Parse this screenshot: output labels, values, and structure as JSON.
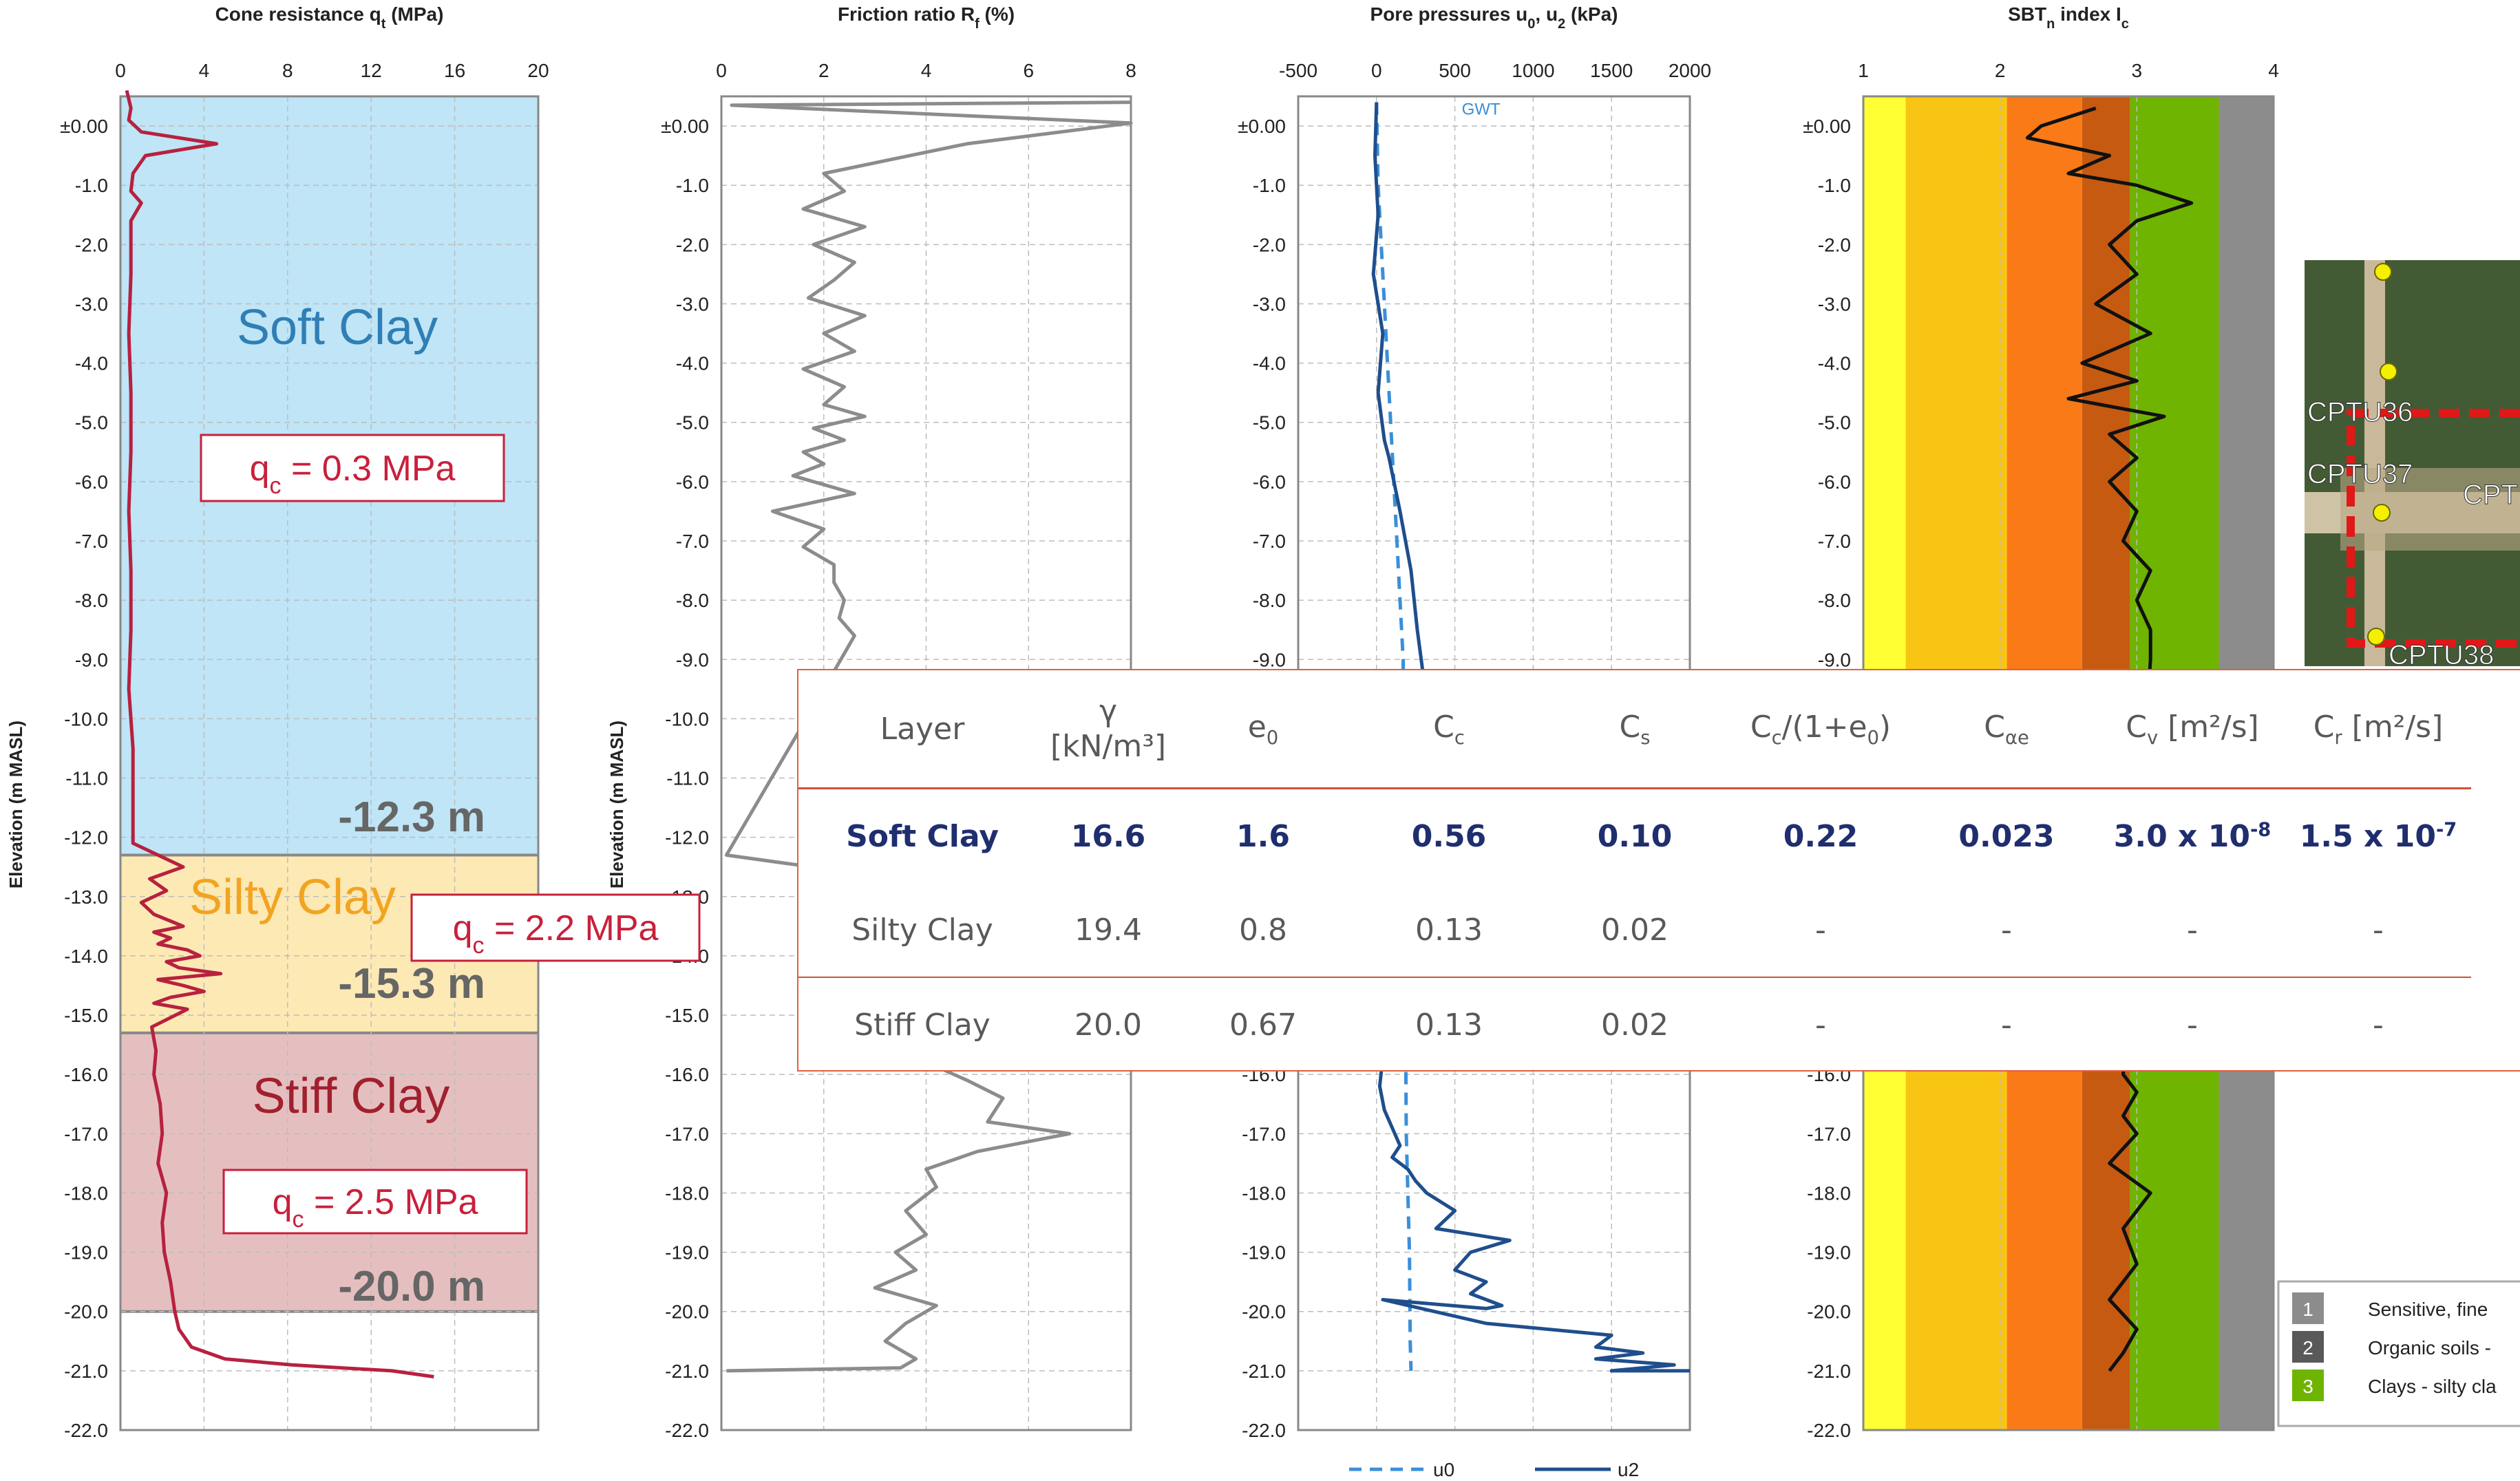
{
  "chart_data": [
    {
      "type": "line",
      "title": "Cone resistance q_t (MPa)",
      "xlim": [
        0,
        20
      ],
      "xticks": [
        0,
        4,
        8,
        12,
        16,
        20
      ],
      "ylabel": "Elevation (m MASL)",
      "ylim": [
        -22,
        0.5
      ],
      "series": [
        {
          "name": "qt",
          "x": [
            0.3,
            0.5,
            0.4,
            1.0,
            4.6,
            1.2,
            0.6,
            0.5,
            1.0,
            0.5,
            0.5,
            0.4,
            0.5,
            0.5,
            0.4,
            0.5,
            0.5,
            0.4,
            0.6,
            0.6,
            1.8,
            3.0,
            1.4,
            2.2,
            1.0,
            1.6,
            3.0,
            1.6,
            2.4,
            1.8,
            3.2,
            3.8,
            2.2,
            2.8,
            4.8,
            1.8,
            3.0,
            4.0,
            2.4,
            1.6,
            3.2,
            1.5,
            1.7,
            1.6,
            1.9,
            2.0,
            1.8,
            2.2,
            2.0,
            2.1,
            2.4,
            2.6,
            2.8,
            3.4,
            5.0,
            8.2,
            13.0,
            15.0
          ],
          "y": [
            0.6,
            0.3,
            0.1,
            -0.1,
            -0.3,
            -0.5,
            -0.8,
            -1.1,
            -1.3,
            -1.6,
            -2.5,
            -3.5,
            -4.5,
            -5.5,
            -6.5,
            -7.5,
            -8.5,
            -9.5,
            -10.5,
            -12.1,
            -12.3,
            -12.5,
            -12.7,
            -12.9,
            -13.1,
            -13.3,
            -13.5,
            -13.6,
            -13.7,
            -13.8,
            -13.9,
            -14.0,
            -14.1,
            -14.2,
            -14.3,
            -14.4,
            -14.5,
            -14.6,
            -14.7,
            -14.8,
            -14.9,
            -15.2,
            -15.6,
            -16.0,
            -16.5,
            -17.0,
            -17.5,
            -18.0,
            -18.5,
            -19.0,
            -19.5,
            -20.0,
            -20.3,
            -20.6,
            -20.8,
            -20.9,
            -21.0,
            -21.1
          ]
        }
      ]
    },
    {
      "type": "line",
      "title": "Friction ratio R_f (%)",
      "xlim": [
        0,
        8
      ],
      "xticks": [
        0,
        2,
        4,
        6,
        8
      ],
      "ylabel": "Elevation (m MASL)",
      "ylim": [
        -22,
        0.5
      ],
      "series": [
        {
          "name": "Rf",
          "x": [
            8,
            0.2,
            8,
            4.8,
            2.0,
            2.4,
            1.6,
            2.8,
            1.8,
            2.6,
            2.2,
            1.7,
            2.8,
            2.0,
            2.6,
            1.6,
            2.4,
            2.0,
            2.8,
            1.8,
            2.4,
            1.6,
            2.0,
            1.4,
            2.6,
            1.0,
            2.0,
            1.6,
            2.2,
            2.2,
            2.4,
            2.3,
            2.6,
            2.4,
            2.2,
            0.1,
            2.6,
            3.5,
            4.8,
            5.5,
            5.2,
            6.8,
            5.0,
            4.0,
            4.2,
            3.6,
            4.0,
            3.4,
            3.8,
            3.0,
            4.2,
            3.6,
            3.2,
            3.8,
            3.5,
            0.1
          ],
          "y": [
            0.4,
            0.35,
            0.05,
            -0.3,
            -0.8,
            -1.1,
            -1.4,
            -1.7,
            -2.0,
            -2.3,
            -2.6,
            -2.9,
            -3.2,
            -3.5,
            -3.8,
            -4.1,
            -4.4,
            -4.7,
            -4.9,
            -5.1,
            -5.3,
            -5.5,
            -5.7,
            -5.9,
            -6.2,
            -6.5,
            -6.8,
            -7.1,
            -7.4,
            -7.7,
            -8.0,
            -8.3,
            -8.6,
            -8.9,
            -9.2,
            -12.3,
            -12.6,
            -15.6,
            -16.1,
            -16.4,
            -16.8,
            -17.0,
            -17.3,
            -17.6,
            -17.9,
            -18.3,
            -18.7,
            -19.0,
            -19.3,
            -19.6,
            -19.9,
            -20.2,
            -20.5,
            -20.8,
            -20.95,
            -21.0
          ]
        }
      ]
    },
    {
      "type": "line",
      "title": "Pore pressures u_0, u_2 (kPa)",
      "xlim": [
        -500,
        2000
      ],
      "xticks": [
        -500,
        0,
        500,
        1000,
        1500,
        2000
      ],
      "ylabel": "Elevation (m MASL)",
      "ylim": [
        -22,
        0.5
      ],
      "annotations": [
        "GWT"
      ],
      "series": [
        {
          "name": "u0",
          "x": [
            0,
            10,
            30,
            50,
            70,
            90,
            110,
            130,
            150,
            170,
            190,
            210,
            215,
            220
          ],
          "y": [
            0.4,
            -1,
            -2,
            -3,
            -4,
            -5,
            -6,
            -7,
            -8,
            -9,
            -17,
            -19,
            -20.5,
            -21
          ]
        },
        {
          "name": "u2",
          "x": [
            0,
            -10,
            10,
            -20,
            40,
            10,
            50,
            80,
            150,
            220,
            260,
            300,
            20,
            50,
            150,
            100,
            200,
            250,
            320,
            500,
            380,
            850,
            600,
            500,
            700,
            600,
            800,
            700,
            40,
            700,
            1500,
            1400,
            1700,
            1400,
            1900,
            1500,
            2000
          ],
          "y": [
            0.4,
            -0.5,
            -1.5,
            -2.5,
            -3.5,
            -4.5,
            -5.3,
            -5.6,
            -6.5,
            -7.5,
            -8.5,
            -9.3,
            -16.2,
            -16.6,
            -17.2,
            -17.4,
            -17.6,
            -17.8,
            -18.0,
            -18.3,
            -18.6,
            -18.8,
            -19.0,
            -19.3,
            -19.5,
            -19.7,
            -19.9,
            -19.95,
            -19.8,
            -20.2,
            -20.4,
            -20.6,
            -20.7,
            -20.8,
            -20.9,
            -21.0,
            -21.0
          ]
        }
      ],
      "legend": [
        "u0",
        "u2"
      ]
    },
    {
      "type": "line",
      "title": "SBT_n index I_c",
      "xlim": [
        1,
        4
      ],
      "xticks": [
        1,
        2,
        3,
        4
      ],
      "ylabel": "Elevation (m MASL)",
      "ylim": [
        -22,
        0.5
      ],
      "series": [
        {
          "name": "Ic",
          "x": [
            2.7,
            2.3,
            2.2,
            2.6,
            2.8,
            2.5,
            3.0,
            3.4,
            3.0,
            2.8,
            3.0,
            2.7,
            3.1,
            2.6,
            3.0,
            2.5,
            3.2,
            2.8,
            3.0,
            2.8,
            3.0,
            2.9,
            3.1,
            3.0,
            3.1,
            3.1,
            2.9,
            3.0,
            2.9,
            3.0,
            2.8,
            3.1,
            2.9,
            3.0,
            2.8,
            3.0,
            2.9,
            2.8
          ],
          "y": [
            0.3,
            0.0,
            -0.2,
            -0.4,
            -0.5,
            -0.8,
            -1.0,
            -1.3,
            -1.6,
            -2.0,
            -2.5,
            -3.0,
            -3.5,
            -4.0,
            -4.3,
            -4.6,
            -4.9,
            -5.2,
            -5.6,
            -6.0,
            -6.5,
            -7.0,
            -7.5,
            -8.0,
            -8.5,
            -9.0,
            -16.0,
            -16.3,
            -16.7,
            -17.0,
            -17.5,
            -18.0,
            -18.6,
            -19.2,
            -19.8,
            -20.3,
            -20.7,
            -21.0
          ]
        }
      ],
      "legend": [
        "Sensitive, fine",
        "Organic soils -",
        "Clays - silty cla"
      ]
    }
  ],
  "panel1": {
    "labels": {
      "soft": "Soft Clay",
      "silty": "Silty Clay",
      "stiff": "Stiff Clay"
    },
    "qc": {
      "soft": "q",
      "silty": "q",
      "stiff": "q",
      "sub": "c",
      "soft_v": " = 0.3 MPa",
      "silty_v": " = 2.2 MPa",
      "stiff_v": " = 2.5 MPa"
    },
    "depths": {
      "soft": "-12.3 m",
      "silty": "-15.3 m",
      "stiff": "-20.0 m"
    }
  },
  "yticks": [
    "±0.00",
    "-1.0",
    "-2.0",
    "-3.0",
    "-4.0",
    "-5.0",
    "-6.0",
    "-7.0",
    "-8.0",
    "-9.0",
    "-10.0",
    "-11.0",
    "-12.0",
    "-13.0",
    "-14.0",
    "-15.0",
    "-16.0",
    "-17.0",
    "-18.0",
    "-19.0",
    "-20.0",
    "-21.0",
    "-22.0"
  ],
  "ylabel": "Elevation (m MASL)",
  "map": {
    "labels": [
      "CPTU36",
      "CPTU37",
      "CPT",
      "CPTU38"
    ]
  },
  "sbt_legend": [
    {
      "n": "1",
      "text": "Sensitive, fine"
    },
    {
      "n": "2",
      "text": "Organic soils -"
    },
    {
      "n": "3",
      "text": "Clays - silty cla"
    }
  ],
  "table": {
    "headers": [
      "Layer",
      "γ",
      "[kN/m³]",
      "e",
      "0",
      "C",
      "c",
      "C",
      "s",
      "C",
      "c",
      "/(1+e",
      "0",
      ")",
      "C",
      "αe",
      "C",
      "v",
      " [m²/s]",
      "C",
      "r",
      " [m²/s]"
    ],
    "rows": [
      [
        "Soft Clay",
        "16.6",
        "1.6",
        "0.56",
        "0.10",
        "0.22",
        "0.023",
        "3.0 x 10",
        "-8",
        "1.5 x 10",
        "-7"
      ],
      [
        "Silty Clay",
        "19.4",
        "0.8",
        "0.13",
        "0.02",
        "-",
        "-",
        "-",
        "-"
      ],
      [
        "Stiff Clay",
        "20.0",
        "0.67",
        "0.13",
        "0.02",
        "-",
        "-",
        "-",
        "-"
      ]
    ]
  },
  "colors": {
    "soft": "#bfe5f6",
    "silty": "#fde9b4",
    "stiff": "#e5bfbf",
    "qt": "#b7213f",
    "rf": "#8c8c8c",
    "u": "#1f4e8c",
    "u0": "#3a8fd8",
    "ic": "#111111"
  }
}
